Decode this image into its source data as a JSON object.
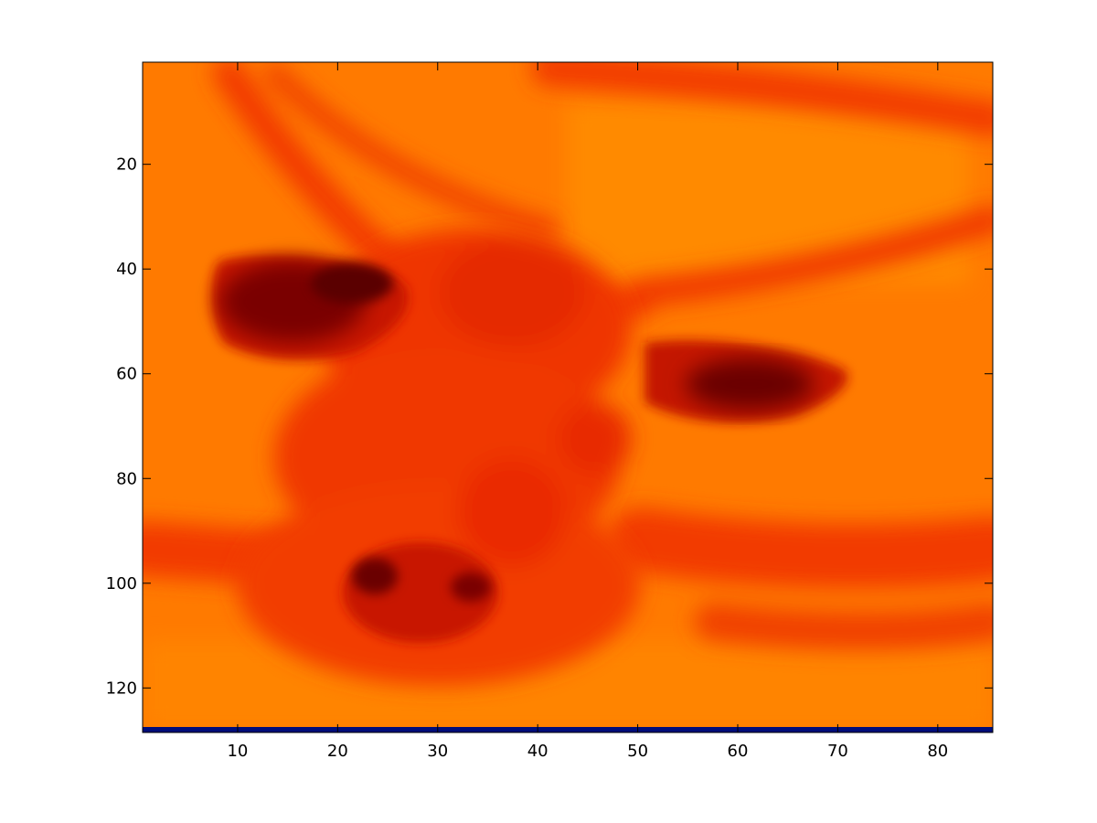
{
  "chart_data": {
    "type": "heatmap",
    "title": "",
    "xlabel": "",
    "ylabel": "",
    "colormap": "hot",
    "image_columns": 85,
    "image_rows": 128,
    "xlim": [
      0.5,
      85.5
    ],
    "ylim": [
      0.5,
      128.5
    ],
    "y_direction": "reverse",
    "x_ticks": [
      10,
      20,
      30,
      40,
      50,
      60,
      70,
      80
    ],
    "y_ticks": [
      20,
      40,
      60,
      80,
      100,
      120
    ],
    "x_tick_labels": [
      "10",
      "20",
      "30",
      "40",
      "50",
      "60",
      "70",
      "80"
    ],
    "y_tick_labels": [
      "20",
      "40",
      "60",
      "80",
      "100",
      "120"
    ],
    "grid": false,
    "colors": {
      "background_orange": "#ff7a00",
      "light_orange": "#ff8a00",
      "mid_red": "#f23a00",
      "red": "#e81e00",
      "dark_red": "#8a0000",
      "darkest": "#4a0000",
      "bottom_row": "#000d7a"
    },
    "features": [
      {
        "name": "dark blob left",
        "x": [
          8,
          26
        ],
        "y": [
          37,
          58
        ],
        "level": 0.18
      },
      {
        "name": "dark blob right",
        "x": [
          52,
          71
        ],
        "y": [
          55,
          70
        ],
        "level": 0.2
      },
      {
        "name": "dark blob bottom",
        "x": [
          20,
          35
        ],
        "y": [
          92,
          112
        ],
        "level": 0.22
      }
    ]
  }
}
